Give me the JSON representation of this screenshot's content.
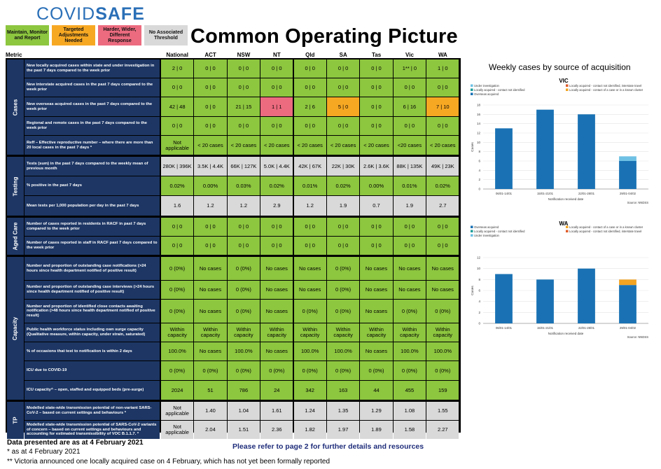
{
  "brand": {
    "part1": "COVID",
    "part2": "SAFE"
  },
  "legend": [
    {
      "label": "Maintain, Monitor and Report",
      "color": "#8dc63f"
    },
    {
      "label": "Targeted Adjustments Needed",
      "color": "#f7a823"
    },
    {
      "label": "Harder, Wider, Different Response",
      "color": "#ec6b7f"
    },
    {
      "label": "No Associated Threshold",
      "color": "#d9d9d9"
    }
  ],
  "title": "Common Operating Picture",
  "table": {
    "metric_header": "Metric",
    "columns": [
      "National",
      "ACT",
      "NSW",
      "NT",
      "Qld",
      "SA",
      "Tas",
      "Vic",
      "WA"
    ],
    "sections": [
      {
        "name": "Cases",
        "rows": [
          {
            "metric": "New locally acquired cases within state and under investigation in the past 7 days compared to the week prior",
            "values": [
              "2 | 0",
              "0 | 0",
              "0 | 0",
              "0 | 0",
              "0 | 0",
              "0 | 0",
              "0 | 0",
              "1** | 0",
              "1 | 0"
            ],
            "status": [
              "g",
              "g",
              "g",
              "g",
              "g",
              "g",
              "g",
              "g",
              "g"
            ]
          },
          {
            "metric": "New interstate acquired cases in the past 7 days compared to the week prior",
            "values": [
              "0 | 0",
              "0 | 0",
              "0 | 0",
              "0 | 0",
              "0 | 0",
              "0 | 0",
              "0 | 0",
              "0 | 0",
              "0 | 0"
            ],
            "status": [
              "g",
              "g",
              "g",
              "g",
              "g",
              "g",
              "g",
              "g",
              "g"
            ]
          },
          {
            "metric": "New overseas acquired cases in the past 7 days compared to the week prior",
            "values": [
              "42 | 48",
              "0 | 0",
              "21 | 15",
              "1 | 1",
              "2 | 6",
              "5 | 0",
              "0 | 0",
              "6 | 16",
              "7 | 10"
            ],
            "status": [
              "g",
              "g",
              "g",
              "r",
              "g",
              "o",
              "g",
              "g",
              "o"
            ]
          },
          {
            "metric": "Regional and remote cases in the past 7 days compared to the week prior",
            "values": [
              "0 | 0",
              "0 | 0",
              "0 | 0",
              "0 | 0",
              "0 | 0",
              "0 | 0",
              "0 | 0",
              "0 | 0",
              "0 | 0"
            ],
            "status": [
              "g",
              "g",
              "g",
              "g",
              "g",
              "g",
              "g",
              "g",
              "g"
            ]
          },
          {
            "metric": "Reff – Effective reproductive number – where there are more than 20 local cases in the past 7 days *",
            "values": [
              "Not applicable",
              "< 20 cases",
              "< 20 cases",
              "< 20 cases",
              "< 20 cases",
              "< 20 cases",
              "< 20 cases",
              "<20 cases",
              "< 20 cases"
            ],
            "status": [
              "g",
              "g",
              "g",
              "g",
              "g",
              "g",
              "g",
              "g",
              "g"
            ]
          }
        ]
      },
      {
        "name": "Testing",
        "rows": [
          {
            "metric": "Tests (sum) in the past 7 days compared to the weekly mean of previous month",
            "values": [
              "280K | 396K",
              "3.5K | 4.4K",
              "66K | 127K",
              "5.0K | 4.4K",
              "42K | 67K",
              "22K | 30K",
              "2.6K | 3.6K",
              "88K | 135K",
              "49K | 23K"
            ],
            "status": [
              "n",
              "n",
              "n",
              "n",
              "n",
              "n",
              "n",
              "n",
              "n"
            ]
          },
          {
            "metric": "% positive in the past 7 days",
            "values": [
              "0.02%",
              "0.00%",
              "0.03%",
              "0.02%",
              "0.01%",
              "0.02%",
              "0.00%",
              "0.01%",
              "0.02%"
            ],
            "status": [
              "g",
              "g",
              "g",
              "g",
              "g",
              "g",
              "g",
              "g",
              "g"
            ]
          },
          {
            "metric": "Mean tests per 1,000 population per day in the past 7 days",
            "values": [
              "1.6",
              "1.2",
              "1.2",
              "2.9",
              "1.2",
              "1.9",
              "0.7",
              "1.9",
              "2.7"
            ],
            "status": [
              "n",
              "n",
              "n",
              "n",
              "n",
              "n",
              "n",
              "n",
              "n"
            ]
          }
        ]
      },
      {
        "name": "Aged Care",
        "rows": [
          {
            "metric": "Number of cases reported in residents in RACF in past 7 days compared to the week prior",
            "values": [
              "0 | 0",
              "0 | 0",
              "0 | 0",
              "0 | 0",
              "0 | 0",
              "0 | 0",
              "0 | 0",
              "0 | 0",
              "0 | 0"
            ],
            "status": [
              "g",
              "g",
              "g",
              "g",
              "g",
              "g",
              "g",
              "g",
              "g"
            ]
          },
          {
            "metric": "Number of cases reported in staff in RACF past 7 days compared to the week prior",
            "values": [
              "0 | 0",
              "0 | 0",
              "0 | 0",
              "0 | 0",
              "0 | 0",
              "0 | 0",
              "0 | 0",
              "0 | 0",
              "0 | 0"
            ],
            "status": [
              "g",
              "g",
              "g",
              "g",
              "g",
              "g",
              "g",
              "g",
              "g"
            ]
          }
        ]
      },
      {
        "name": "Capacity",
        "rows": [
          {
            "metric": "Number and proportion of outstanding case notifications (>24 hours since health department notified of positive result)",
            "values": [
              "0 (0%)",
              "No cases",
              "0 (0%)",
              "No cases",
              "No cases",
              "0 (0%)",
              "No cases",
              "No cases",
              "No cases"
            ],
            "status": [
              "g",
              "g",
              "g",
              "g",
              "g",
              "g",
              "g",
              "g",
              "g"
            ]
          },
          {
            "metric": "Number and proportion of outstanding case interviews (>24 hours since health department notified of positive result)",
            "values": [
              "0 (0%)",
              "No cases",
              "0 (0%)",
              "No cases",
              "No cases",
              "0 (0%)",
              "No cases",
              "No cases",
              "No cases"
            ],
            "status": [
              "g",
              "g",
              "g",
              "g",
              "g",
              "g",
              "g",
              "g",
              "g"
            ]
          },
          {
            "metric": "Number and proportion of identified close contacts awaiting notification (>48 hours since health department notified of positive result)",
            "values": [
              "0 (0%)",
              "No cases",
              "0 (0%)",
              "No cases",
              "0 (0%)",
              "0 (0%)",
              "No cases",
              "0 (0%)",
              "0 (0%)"
            ],
            "status": [
              "g",
              "g",
              "g",
              "g",
              "g",
              "g",
              "g",
              "g",
              "g"
            ]
          },
          {
            "metric": "Public health workforce status including own surge capacity (Qualitative measure, within capacity, under strain, saturated)",
            "values": [
              "Within capacity",
              "Within capacity",
              "Within capacity",
              "Within capacity",
              "Within capacity",
              "Within capacity",
              "Within capacity",
              "Within capacity",
              "Within capacity"
            ],
            "status": [
              "g",
              "g",
              "g",
              "g",
              "g",
              "g",
              "g",
              "g",
              "g"
            ]
          },
          {
            "metric": "% of occasions that test to notification is within 2 days",
            "values": [
              "100.0%",
              "No cases",
              "100.0%",
              "No cases",
              "100.0%",
              "100.0%",
              "No cases",
              "100.0%",
              "100.0%"
            ],
            "status": [
              "g",
              "g",
              "g",
              "g",
              "g",
              "g",
              "g",
              "g",
              "g"
            ]
          },
          {
            "metric": "ICU due to COVID-19",
            "values": [
              "0 (0%)",
              "0 (0%)",
              "0 (0%)",
              "0 (0%)",
              "0 (0%)",
              "0 (0%)",
              "0 (0%)",
              "0 (0%)",
              "0 (0%)"
            ],
            "status": [
              "g",
              "g",
              "g",
              "g",
              "g",
              "g",
              "g",
              "g",
              "g"
            ]
          },
          {
            "metric": "ICU capacity^ – open, staffed and equipped beds (pre-surge)",
            "values": [
              "2024",
              "51",
              "786",
              "24",
              "342",
              "163",
              "44",
              "455",
              "159"
            ],
            "status": [
              "g",
              "g",
              "g",
              "g",
              "g",
              "g",
              "g",
              "g",
              "g"
            ]
          }
        ]
      },
      {
        "name": "TP",
        "rows": [
          {
            "metric": "Modelled state-wide transmission potential of non-variant SARS-CoV-2 – based on current settings and behaviours *",
            "values": [
              "Not applicable",
              "1.40",
              "1.04",
              "1.61",
              "1.24",
              "1.35",
              "1.29",
              "1.08",
              "1.55"
            ],
            "status": [
              "n",
              "n",
              "n",
              "n",
              "n",
              "n",
              "n",
              "n",
              "n"
            ]
          },
          {
            "metric": "Modelled state-wide transmission potential of SARS-CoV-2 variants of concern – based on current settings and behaviours and accounting for estimated transmissibility of VOC B.1.1.7. *",
            "values": [
              "Not applicable",
              "2.04",
              "1.51",
              "2.36",
              "1.82",
              "1.97",
              "1.89",
              "1.58",
              "2.27"
            ],
            "status": [
              "n",
              "n",
              "n",
              "n",
              "n",
              "n",
              "n",
              "n",
              "n"
            ]
          }
        ]
      }
    ]
  },
  "footer": {
    "date_line": "Data presented are as at 4 February 2021",
    "asterisk_line": "* as at 4 February 2021",
    "double_asterisk_line": "** Victoria announced one locally acquired case on 4 February, which has not yet been formally reported",
    "refer": "Please refer to page 2 for further details and resources"
  },
  "charts_title": "Weekly cases by source of acquisition",
  "chart_data": [
    {
      "type": "bar",
      "title": "VIC",
      "categories": [
        "06/01-14/01",
        "15/01-21/01",
        "22/01-28/01",
        "29/01-04/02"
      ],
      "series": [
        {
          "name": "Overseas acquired",
          "values": [
            13,
            17,
            16,
            6
          ],
          "color": "#1a72b4"
        },
        {
          "name": "Under investigation",
          "values": [
            0,
            0,
            0,
            1
          ],
          "color": "#6ec1e4"
        },
        {
          "name": "Locally acquired - contact not identified",
          "values": [
            0,
            0,
            0,
            0
          ],
          "color": "#1f9e9a"
        },
        {
          "name": "Locally acquired - contact not identified, interstate travel",
          "values": [
            0,
            0,
            0,
            0
          ],
          "color": "#e05c2a"
        },
        {
          "name": "Locally acquired - contact of a case or in a known cluster",
          "values": [
            0,
            0,
            0,
            0
          ],
          "color": "#f2a422"
        }
      ],
      "xlabel": "Notification received date",
      "ylabel": "Cases",
      "ylim": [
        0,
        18
      ],
      "yticks": [
        0,
        2,
        4,
        6,
        8,
        10,
        12,
        14,
        16,
        18
      ],
      "source": "Source: NNDSS"
    },
    {
      "type": "bar",
      "title": "WA",
      "categories": [
        "06/01-14/01",
        "15/01-21/01",
        "22/01-28/01",
        "29/01-04/02"
      ],
      "series": [
        {
          "name": "Overseas acquired",
          "values": [
            9,
            8,
            10,
            7
          ],
          "color": "#1a72b4"
        },
        {
          "name": "Locally acquired - contact of a case or in a known cluster",
          "values": [
            0,
            0,
            0,
            1
          ],
          "color": "#f2a422"
        },
        {
          "name": "Locally acquired - contact not identified",
          "values": [
            0,
            0,
            0,
            0
          ],
          "color": "#1f9e9a"
        },
        {
          "name": "Locally acquired - contact not identified, interstate travel",
          "values": [
            0,
            0,
            0,
            0
          ],
          "color": "#e05c2a"
        },
        {
          "name": "Under investigation",
          "values": [
            0,
            0,
            0,
            0
          ],
          "color": "#6ec1e4"
        }
      ],
      "xlabel": "Notification received date",
      "ylabel": "Cases",
      "ylim": [
        0,
        12
      ],
      "yticks": [
        0,
        2,
        4,
        6,
        8,
        10,
        12
      ],
      "source": "Source: NNDSS"
    }
  ]
}
